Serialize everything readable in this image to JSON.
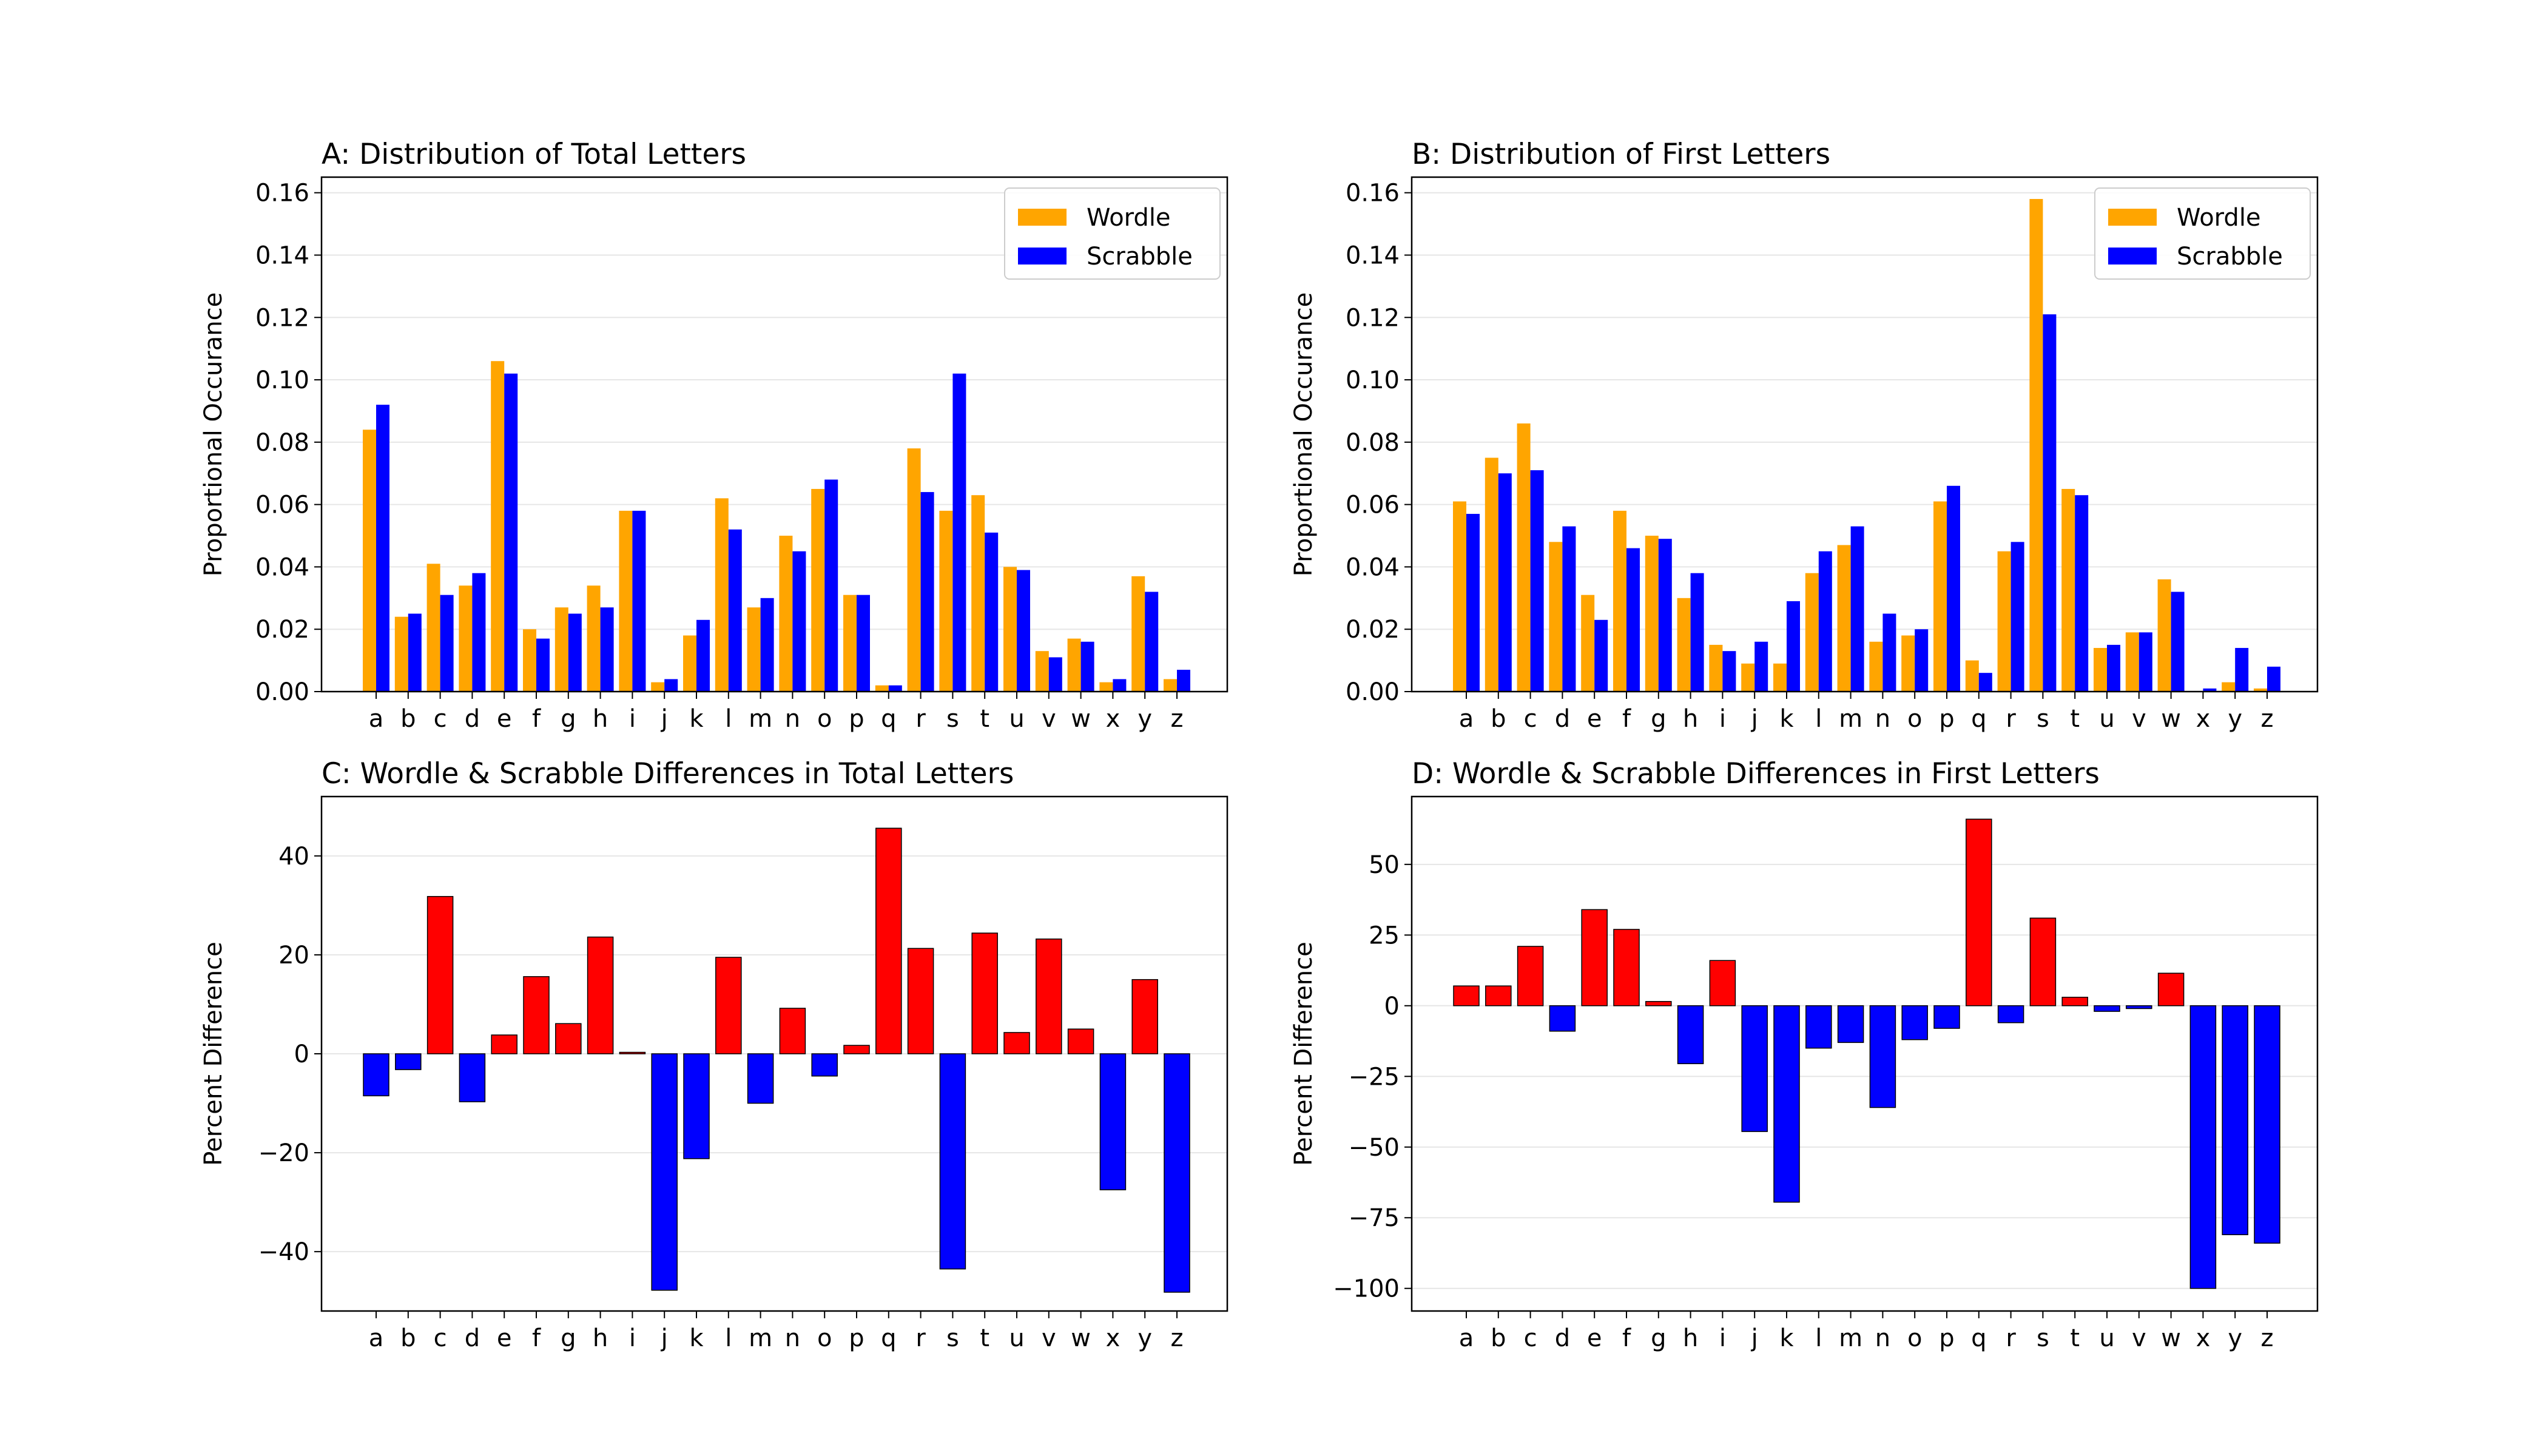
{
  "colors": {
    "wordle": "#FFA500",
    "scrabble": "#0000FF",
    "positive": "#FF0000",
    "negative": "#0000FF",
    "grid": "#e6e6e6"
  },
  "chart_data": [
    {
      "id": "A",
      "type": "bar",
      "title": "A: Distribution of Total Letters",
      "xlabel": "",
      "ylabel": "Proportional Occurance",
      "ylim": [
        0,
        0.165
      ],
      "yticks": [
        0,
        0.02,
        0.04,
        0.06,
        0.08,
        0.1,
        0.12,
        0.14,
        0.16
      ],
      "ytick_labels": [
        "0.00",
        "0.02",
        "0.04",
        "0.06",
        "0.08",
        "0.10",
        "0.12",
        "0.14",
        "0.16"
      ],
      "grid": true,
      "legend": "top-right",
      "categories": [
        "a",
        "b",
        "c",
        "d",
        "e",
        "f",
        "g",
        "h",
        "i",
        "j",
        "k",
        "l",
        "m",
        "n",
        "o",
        "p",
        "q",
        "r",
        "s",
        "t",
        "u",
        "v",
        "w",
        "x",
        "y",
        "z"
      ],
      "series": [
        {
          "name": "Wordle",
          "color_key": "wordle",
          "values": [
            0.084,
            0.024,
            0.041,
            0.034,
            0.106,
            0.02,
            0.027,
            0.034,
            0.058,
            0.003,
            0.018,
            0.062,
            0.027,
            0.05,
            0.065,
            0.031,
            0.002,
            0.078,
            0.058,
            0.063,
            0.04,
            0.013,
            0.017,
            0.003,
            0.037,
            0.004
          ]
        },
        {
          "name": "Scrabble",
          "color_key": "scrabble",
          "values": [
            0.092,
            0.025,
            0.031,
            0.038,
            0.102,
            0.017,
            0.025,
            0.027,
            0.058,
            0.004,
            0.023,
            0.052,
            0.03,
            0.045,
            0.068,
            0.031,
            0.002,
            0.064,
            0.102,
            0.051,
            0.039,
            0.011,
            0.016,
            0.004,
            0.032,
            0.007
          ]
        }
      ]
    },
    {
      "id": "B",
      "type": "bar",
      "title": "B: Distribution of First Letters",
      "xlabel": "",
      "ylabel": "Proportional Occurance",
      "ylim": [
        0,
        0.165
      ],
      "yticks": [
        0,
        0.02,
        0.04,
        0.06,
        0.08,
        0.1,
        0.12,
        0.14,
        0.16
      ],
      "ytick_labels": [
        "0.00",
        "0.02",
        "0.04",
        "0.06",
        "0.08",
        "0.10",
        "0.12",
        "0.14",
        "0.16"
      ],
      "grid": true,
      "legend": "top-right",
      "categories": [
        "a",
        "b",
        "c",
        "d",
        "e",
        "f",
        "g",
        "h",
        "i",
        "j",
        "k",
        "l",
        "m",
        "n",
        "o",
        "p",
        "q",
        "r",
        "s",
        "t",
        "u",
        "v",
        "w",
        "x",
        "y",
        "z"
      ],
      "series": [
        {
          "name": "Wordle",
          "color_key": "wordle",
          "values": [
            0.061,
            0.075,
            0.086,
            0.048,
            0.031,
            0.058,
            0.05,
            0.03,
            0.015,
            0.009,
            0.009,
            0.038,
            0.047,
            0.016,
            0.018,
            0.061,
            0.01,
            0.045,
            0.158,
            0.065,
            0.014,
            0.019,
            0.036,
            0.0,
            0.003,
            0.001
          ]
        },
        {
          "name": "Scrabble",
          "color_key": "scrabble",
          "values": [
            0.057,
            0.07,
            0.071,
            0.053,
            0.023,
            0.046,
            0.049,
            0.038,
            0.013,
            0.016,
            0.029,
            0.045,
            0.053,
            0.025,
            0.02,
            0.066,
            0.006,
            0.048,
            0.121,
            0.063,
            0.015,
            0.019,
            0.032,
            0.001,
            0.014,
            0.008
          ]
        }
      ]
    },
    {
      "id": "C",
      "type": "bar",
      "title": "C: Wordle & Scrabble Differences in Total Letters",
      "xlabel": "",
      "ylabel": "Percent Difference",
      "ylim": [
        -52,
        52
      ],
      "yticks": [
        -40,
        -20,
        0,
        20,
        40
      ],
      "ytick_labels": [
        "−40",
        "−20",
        "0",
        "20",
        "40"
      ],
      "grid": true,
      "categories": [
        "a",
        "b",
        "c",
        "d",
        "e",
        "f",
        "g",
        "h",
        "i",
        "j",
        "k",
        "l",
        "m",
        "n",
        "o",
        "p",
        "q",
        "r",
        "s",
        "t",
        "u",
        "v",
        "w",
        "x",
        "y",
        "z"
      ],
      "values": [
        -8.5,
        -3.2,
        31.8,
        -9.7,
        3.8,
        15.6,
        6.1,
        23.6,
        0.3,
        -47.8,
        -21.2,
        19.5,
        -10.0,
        9.2,
        -4.5,
        1.7,
        45.6,
        21.3,
        -43.5,
        24.4,
        4.3,
        23.2,
        5.0,
        -27.5,
        15.0,
        -48.2
      ]
    },
    {
      "id": "D",
      "type": "bar",
      "title": "D: Wordle & Scrabble Differences in First Letters",
      "xlabel": "",
      "ylabel": "Percent Difference",
      "ylim": [
        -108,
        74
      ],
      "yticks": [
        -100,
        -75,
        -50,
        -25,
        0,
        25,
        50
      ],
      "ytick_labels": [
        "−100",
        "−75",
        "−50",
        "−25",
        "0",
        "25",
        "50"
      ],
      "grid": true,
      "categories": [
        "a",
        "b",
        "c",
        "d",
        "e",
        "f",
        "g",
        "h",
        "i",
        "j",
        "k",
        "l",
        "m",
        "n",
        "o",
        "p",
        "q",
        "r",
        "s",
        "t",
        "u",
        "v",
        "w",
        "x",
        "y",
        "z"
      ],
      "values": [
        7.0,
        7.0,
        21.0,
        -9.0,
        34.0,
        27.0,
        1.5,
        -20.5,
        16.0,
        -44.5,
        -69.5,
        -15.0,
        -13.0,
        -36.0,
        -12.0,
        -8.0,
        66.0,
        -6.0,
        31.0,
        3.0,
        -2.0,
        -1.0,
        11.5,
        -100.0,
        -81.0,
        -84.0
      ]
    }
  ]
}
